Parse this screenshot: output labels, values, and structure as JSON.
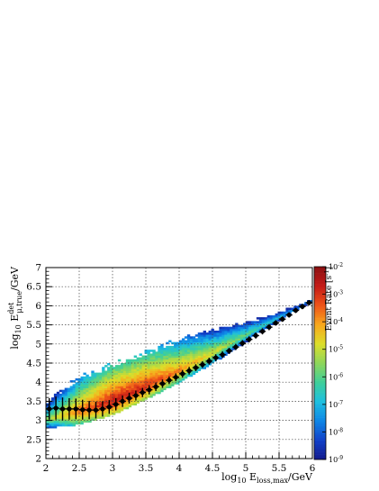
{
  "chart_data": {
    "type": "heatmap",
    "title": "",
    "xlabel": {
      "pre": "log",
      "sub1": "10",
      "mid": " E",
      "sub2": "loss,max",
      "post": "/GeV"
    },
    "ylabel": {
      "pre": "log",
      "sub1": "10",
      "mid": " E",
      "sup": "det",
      "sub2": "μ,true",
      "post": "/GeV"
    },
    "xlim": [
      2,
      6
    ],
    "ylim": [
      2,
      7
    ],
    "x_ticks": [
      "2",
      "2.5",
      "3",
      "3.5",
      "4",
      "4.5",
      "5",
      "5.5",
      "6"
    ],
    "y_ticks": [
      "2",
      "2.5",
      "3",
      "3.5",
      "4",
      "4.5",
      "5",
      "5.5",
      "6",
      "6.5",
      "7"
    ],
    "grid": true,
    "colorbar": {
      "title": "Event Rate [s",
      "title_sup": "-1",
      "title_close": "]",
      "scale": "log",
      "zlim": [
        1e-09,
        0.01
      ],
      "ticks": [
        {
          "base": "10",
          "exp": "-9"
        },
        {
          "base": "10",
          "exp": "-8"
        },
        {
          "base": "10",
          "exp": "-7"
        },
        {
          "base": "10",
          "exp": "-6"
        },
        {
          "base": "10",
          "exp": "-5"
        },
        {
          "base": "10",
          "exp": "-4"
        },
        {
          "base": "10",
          "exp": "-3"
        },
        {
          "base": "10",
          "exp": "-2"
        }
      ],
      "colors": [
        "#141a8c",
        "#1040c8",
        "#0e86e6",
        "#1dbfe0",
        "#3ecf9a",
        "#8ed65a",
        "#dcde2a",
        "#f8a81c",
        "#ee5418",
        "#c41a16",
        "#8a1012"
      ]
    },
    "distribution": {
      "description_free": true,
      "band_upper": [
        [
          2.0,
          3.5
        ],
        [
          2.5,
          4.05
        ],
        [
          3.0,
          4.4
        ],
        [
          3.5,
          4.75
        ],
        [
          4.0,
          5.05
        ],
        [
          4.5,
          5.35
        ],
        [
          5.0,
          5.65
        ],
        [
          5.5,
          5.95
        ],
        [
          6.0,
          6.3
        ]
      ],
      "band_lower": [
        [
          2.0,
          2.85
        ],
        [
          2.5,
          2.95
        ],
        [
          3.0,
          3.2
        ],
        [
          3.5,
          3.6
        ],
        [
          4.0,
          4.05
        ],
        [
          4.5,
          4.55
        ],
        [
          5.0,
          5.1
        ],
        [
          5.5,
          5.6
        ],
        [
          6.0,
          6.1
        ]
      ],
      "peak_log_rate": [
        [
          2.0,
          -5.5
        ],
        [
          2.5,
          -3.6
        ],
        [
          3.0,
          -2.6
        ],
        [
          3.5,
          -2.9
        ],
        [
          4.0,
          -3.8
        ],
        [
          4.5,
          -4.8
        ],
        [
          5.0,
          -5.8
        ],
        [
          5.5,
          -6.8
        ],
        [
          6.0,
          -7.8
        ]
      ]
    },
    "profile_points": {
      "x": [
        2.05,
        2.15,
        2.25,
        2.35,
        2.45,
        2.55,
        2.65,
        2.75,
        2.85,
        2.95,
        3.05,
        3.15,
        3.25,
        3.35,
        3.45,
        3.55,
        3.65,
        3.75,
        3.85,
        3.95,
        4.05,
        4.15,
        4.25,
        4.35,
        4.45,
        4.55,
        4.65,
        4.75,
        4.85,
        4.95,
        5.05,
        5.15,
        5.25,
        5.35,
        5.45,
        5.55,
        5.65,
        5.75,
        5.85,
        5.95
      ],
      "y": [
        3.3,
        3.32,
        3.3,
        3.3,
        3.3,
        3.28,
        3.27,
        3.27,
        3.3,
        3.35,
        3.42,
        3.5,
        3.58,
        3.65,
        3.73,
        3.8,
        3.88,
        3.96,
        4.05,
        4.13,
        4.22,
        4.3,
        4.38,
        4.46,
        4.55,
        4.64,
        4.72,
        4.82,
        4.92,
        5.02,
        5.12,
        5.22,
        5.33,
        5.44,
        5.55,
        5.65,
        5.76,
        5.88,
        5.98,
        6.08
      ],
      "yerr": [
        0.28,
        0.3,
        0.3,
        0.28,
        0.27,
        0.26,
        0.24,
        0.22,
        0.2,
        0.18,
        0.16,
        0.15,
        0.14,
        0.13,
        0.12,
        0.12,
        0.11,
        0.11,
        0.1,
        0.1,
        0.1,
        0.1,
        0.09,
        0.09,
        0.09,
        0.09,
        0.09,
        0.08,
        0.08,
        0.08,
        0.08,
        0.08,
        0.08,
        0.08,
        0.07,
        0.07,
        0.07,
        0.07,
        0.07,
        0.07
      ],
      "xerr": 0.05,
      "color": "#000000"
    }
  }
}
